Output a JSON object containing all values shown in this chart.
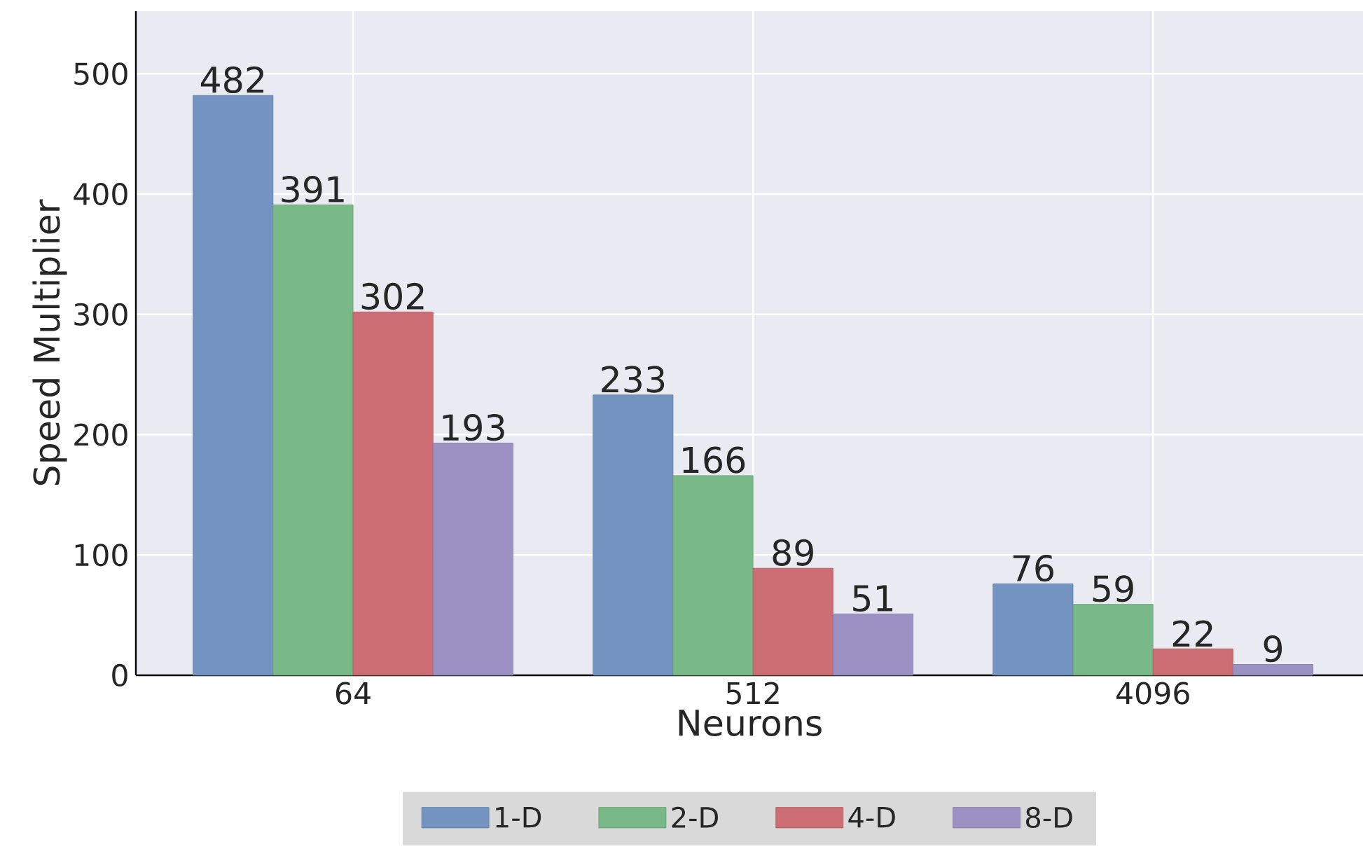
{
  "chart_data": {
    "type": "bar",
    "xlabel": "Neurons",
    "ylabel": "Speed Multiplier",
    "categories": [
      "64",
      "512",
      "4096"
    ],
    "series": [
      {
        "name": "1-D",
        "color": "#7393c0",
        "values": [
          482,
          233,
          76
        ]
      },
      {
        "name": "2-D",
        "color": "#79b887",
        "values": [
          391,
          166,
          59
        ]
      },
      {
        "name": "4-D",
        "color": "#cd6e74",
        "values": [
          302,
          89,
          22
        ]
      },
      {
        "name": "8-D",
        "color": "#9b91c2",
        "values": [
          193,
          51,
          9
        ]
      }
    ],
    "ylim": [
      0,
      552
    ],
    "yticks": [
      0,
      100,
      200,
      300,
      400,
      500
    ],
    "grid": true,
    "legend": "bottom",
    "data_labels": true
  }
}
